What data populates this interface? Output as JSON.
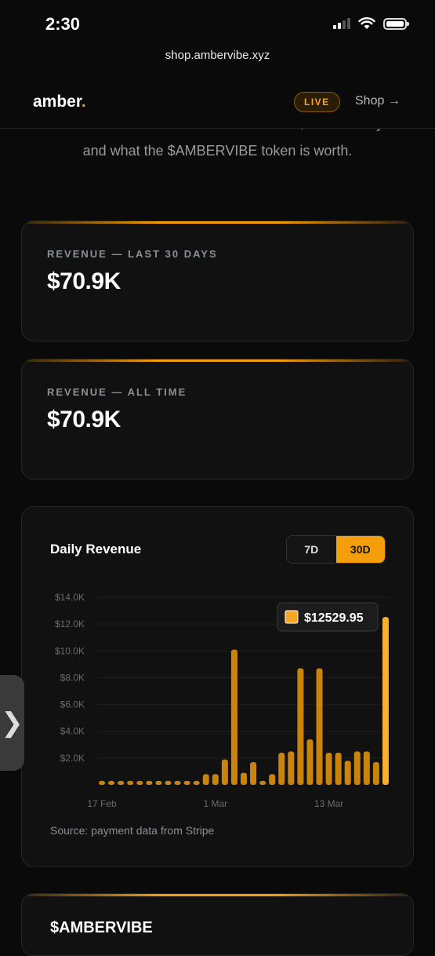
{
  "status_bar": {
    "time": "2:30"
  },
  "browser": {
    "url": "shop.ambervibe.xyz"
  },
  "nav": {
    "logo_text": "amber",
    "logo_dot": ".",
    "live_label": "LIVE",
    "shop_label": "Shop →"
  },
  "intro": {
    "line1": "This is the live record of what she earns, her treasury",
    "line2": "and what the $AMBERVIBE token is worth."
  },
  "stats": [
    {
      "label": "REVENUE — LAST 30 DAYS",
      "value": "$70.9K"
    },
    {
      "label": "REVENUE — ALL TIME",
      "value": "$70.9K"
    }
  ],
  "chart_section": {
    "title": "Daily Revenue",
    "range_options": [
      "7D",
      "30D"
    ],
    "selected_range": "30D",
    "source": "Source: payment data from Stripe",
    "tooltip": "$12529.95"
  },
  "chart_data": {
    "type": "bar",
    "title": "Daily Revenue",
    "xlabel": "",
    "ylabel": "",
    "ylim": [
      0,
      14000
    ],
    "yticks": [
      2000,
      4000,
      6000,
      8000,
      10000,
      12000,
      14000
    ],
    "ytick_labels": [
      "$2.0K",
      "$4.0K",
      "$6.0K",
      "$8.0K",
      "$10.0K",
      "$12.0K",
      "$14.0K"
    ],
    "xtick_labels": [
      {
        "label": "17 Feb",
        "index": 0
      },
      {
        "label": "1 Mar",
        "index": 12
      },
      {
        "label": "13 Mar",
        "index": 24
      }
    ],
    "values": [
      300,
      300,
      300,
      300,
      300,
      300,
      300,
      300,
      300,
      300,
      300,
      800,
      800,
      1900,
      10100,
      900,
      1700,
      300,
      800,
      2400,
      2500,
      8700,
      3400,
      8700,
      2400,
      2400,
      1800,
      2500,
      2500,
      1700,
      12529.95
    ],
    "grid": true,
    "color": "#f59e0b",
    "highlight_index": 30
  },
  "token": {
    "title": "$AMBERVIBE"
  },
  "colors": {
    "accent": "#f59e0b",
    "background": "#0a0a0a",
    "card": "#111111"
  }
}
